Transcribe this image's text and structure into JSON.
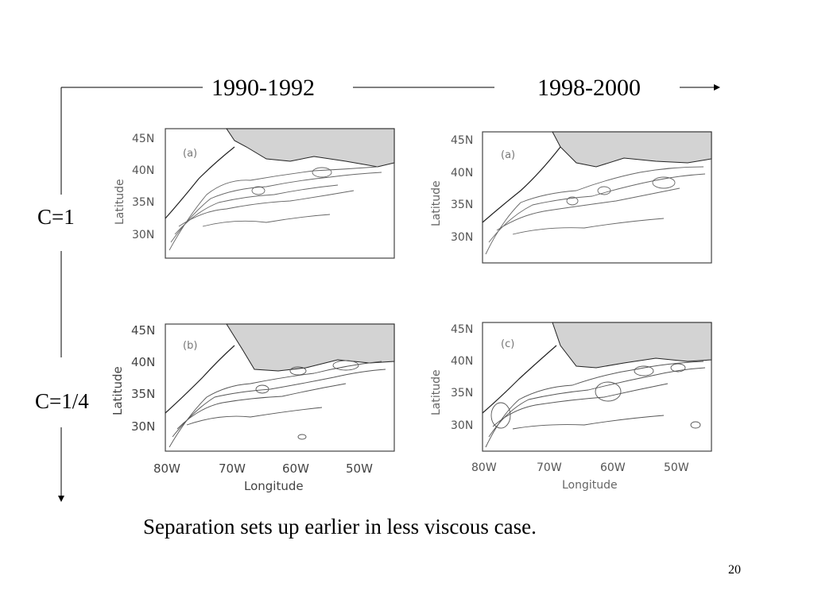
{
  "column_headers": [
    "1990-1992",
    "1998-2000"
  ],
  "row_labels": [
    "C=1",
    "C=1/4"
  ],
  "panels": [
    {
      "label": "(a)",
      "ylabel": "Latitude",
      "yticks": [
        "45N",
        "40N",
        "35N",
        "30N"
      ],
      "xlabel": "",
      "xticks": []
    },
    {
      "label": "(a)",
      "ylabel": "Latitude",
      "yticks": [
        "45N",
        "40N",
        "35N",
        "30N"
      ],
      "xlabel": "",
      "xticks": []
    },
    {
      "label": "(b)",
      "ylabel": "Latitude",
      "yticks": [
        "45N",
        "40N",
        "35N",
        "30N"
      ],
      "xlabel": "Longitude",
      "xticks": [
        "80W",
        "70W",
        "60W",
        "50W"
      ]
    },
    {
      "label": "(c)",
      "ylabel": "Latitude",
      "yticks": [
        "45N",
        "40N",
        "35N",
        "30N"
      ],
      "xlabel": "Longitude",
      "xticks": [
        "80W",
        "70W",
        "60W",
        "50W"
      ]
    }
  ],
  "caption": "Separation sets up earlier in less viscous case.",
  "page_number": "20",
  "colors": {
    "land": "#d3d3d3",
    "contour": "#555555",
    "text": "#000000"
  }
}
